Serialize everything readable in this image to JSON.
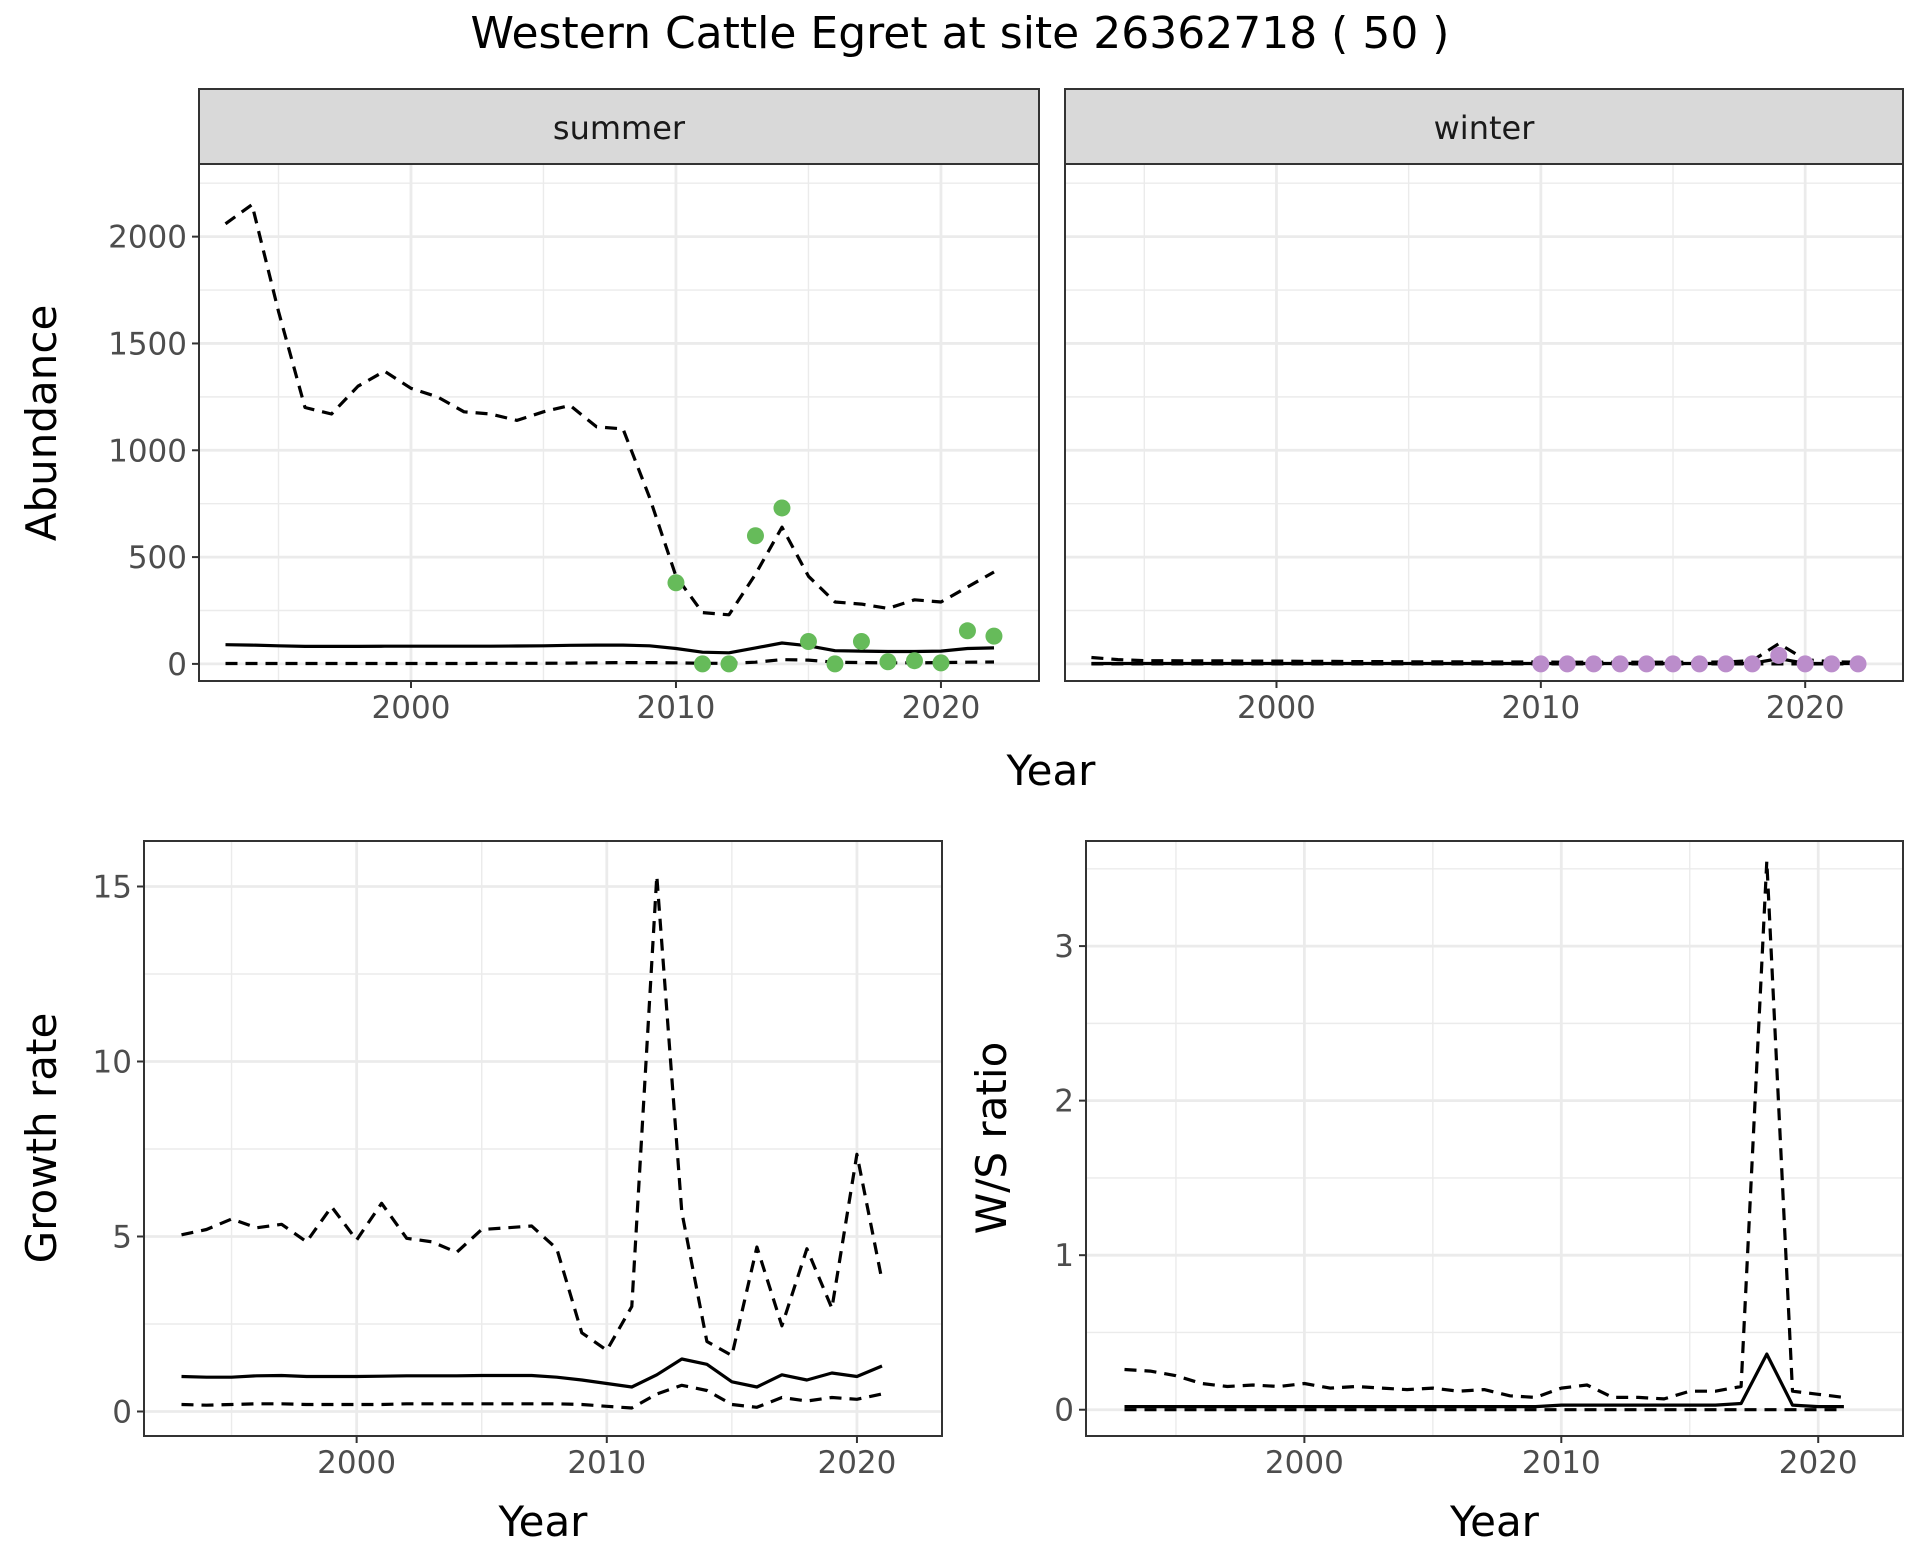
{
  "figure": {
    "title": "Western Cattle Egret at site 26362718 ( 50 )"
  },
  "chart_data": [
    {
      "type": "line",
      "panel": "abundance",
      "facets": [
        "summer",
        "winter"
      ],
      "xlabel": "Year",
      "ylabel": "Abundance",
      "xlim": [
        1992,
        2023.7
      ],
      "ylim": [
        -80,
        2340
      ],
      "xticks": [
        2000,
        2010,
        2020
      ],
      "yticks": [
        0,
        500,
        1000,
        1500,
        2000
      ],
      "grid": true,
      "legend": "none",
      "series": {
        "summer": {
          "x": [
            1993,
            1994,
            1995,
            1996,
            1997,
            1998,
            1999,
            2000,
            2001,
            2002,
            2003,
            2004,
            2005,
            2006,
            2007,
            2008,
            2009,
            2010,
            2011,
            2012,
            2013,
            2014,
            2015,
            2016,
            2017,
            2018,
            2019,
            2020,
            2021,
            2022
          ],
          "estimate": [
            90,
            88,
            85,
            82,
            82,
            82,
            83,
            83,
            83,
            83,
            83,
            84,
            85,
            87,
            88,
            88,
            85,
            72,
            55,
            52,
            75,
            98,
            85,
            62,
            60,
            58,
            58,
            60,
            72,
            75
          ],
          "upper": [
            2060,
            2150,
            1650,
            1200,
            1170,
            1300,
            1370,
            1290,
            1250,
            1180,
            1170,
            1140,
            1180,
            1210,
            1110,
            1100,
            780,
            410,
            240,
            230,
            420,
            640,
            410,
            290,
            280,
            260,
            300,
            290,
            360,
            430
          ],
          "lower": [
            2,
            2,
            2,
            2,
            2,
            2,
            2,
            2,
            2,
            2,
            3,
            3,
            3,
            4,
            5,
            6,
            6,
            5,
            3,
            3,
            8,
            20,
            18,
            8,
            6,
            5,
            5,
            6,
            8,
            9
          ],
          "obs_x": [
            2010,
            2011,
            2012,
            2013,
            2014,
            2015,
            2016,
            2017,
            2018,
            2019,
            2020,
            2021,
            2022
          ],
          "obs_y": [
            380,
            0,
            0,
            600,
            730,
            105,
            0,
            105,
            10,
            15,
            5,
            155,
            130
          ],
          "point_color": "#66BB5A"
        },
        "winter": {
          "x": [
            1993,
            1994,
            1995,
            1996,
            1997,
            1998,
            1999,
            2000,
            2001,
            2002,
            2003,
            2004,
            2005,
            2006,
            2007,
            2008,
            2009,
            2010,
            2011,
            2012,
            2013,
            2014,
            2015,
            2016,
            2017,
            2018,
            2019,
            2020,
            2021,
            2022
          ],
          "estimate": [
            2,
            2,
            2,
            2,
            2,
            2,
            2,
            2,
            2,
            2,
            2,
            2,
            2,
            2,
            2,
            2,
            2,
            2,
            2,
            2,
            2,
            2,
            2,
            2,
            2,
            3,
            25,
            3,
            2,
            2
          ],
          "upper": [
            30,
            20,
            15,
            15,
            14,
            14,
            13,
            13,
            12,
            12,
            11,
            11,
            10,
            10,
            10,
            9,
            9,
            9,
            8,
            8,
            8,
            8,
            8,
            8,
            9,
            15,
            95,
            20,
            10,
            8
          ],
          "lower": [
            0,
            0,
            0,
            0,
            0,
            0,
            0,
            0,
            0,
            0,
            0,
            0,
            0,
            0,
            0,
            0,
            0,
            0,
            0,
            0,
            0,
            0,
            0,
            0,
            0,
            0,
            0,
            0,
            0,
            0
          ],
          "obs_x": [
            2010,
            2011,
            2012,
            2013,
            2014,
            2015,
            2016,
            2017,
            2018,
            2019,
            2020,
            2021,
            2022
          ],
          "obs_y": [
            0,
            0,
            0,
            0,
            0,
            0,
            0,
            0,
            0,
            40,
            0,
            0,
            0
          ],
          "point_color": "#BB8DCB"
        }
      }
    },
    {
      "type": "line",
      "panel": "growth",
      "xlabel": "Year",
      "ylabel": "Growth rate",
      "xlim": [
        1991.5,
        2023.4
      ],
      "ylim": [
        -0.7,
        16.3
      ],
      "xticks": [
        2000,
        2010,
        2020
      ],
      "yticks": [
        0,
        5,
        10,
        15
      ],
      "grid": true,
      "legend": "none",
      "x": [
        1993,
        1994,
        1995,
        1996,
        1997,
        1998,
        1999,
        2000,
        2001,
        2002,
        2003,
        2004,
        2005,
        2006,
        2007,
        2008,
        2009,
        2010,
        2011,
        2012,
        2013,
        2014,
        2015,
        2016,
        2017,
        2018,
        2019,
        2020,
        2021
      ],
      "estimate": [
        1.0,
        0.98,
        0.98,
        1.02,
        1.03,
        1.0,
        1.0,
        1.0,
        1.01,
        1.02,
        1.02,
        1.02,
        1.03,
        1.03,
        1.03,
        0.98,
        0.9,
        0.8,
        0.7,
        1.05,
        1.5,
        1.35,
        0.85,
        0.7,
        1.05,
        0.9,
        1.1,
        1.0,
        1.3
      ],
      "upper": [
        5.05,
        5.2,
        5.5,
        5.25,
        5.35,
        4.85,
        5.85,
        4.9,
        5.95,
        4.95,
        4.85,
        4.55,
        5.2,
        5.25,
        5.3,
        4.65,
        2.25,
        1.75,
        3.0,
        15.3,
        5.7,
        2.0,
        1.6,
        4.7,
        2.45,
        4.65,
        2.95,
        7.35,
        3.75
      ],
      "lower": [
        0.2,
        0.18,
        0.2,
        0.22,
        0.22,
        0.2,
        0.2,
        0.2,
        0.2,
        0.22,
        0.22,
        0.22,
        0.22,
        0.22,
        0.22,
        0.22,
        0.2,
        0.15,
        0.1,
        0.5,
        0.75,
        0.6,
        0.2,
        0.12,
        0.4,
        0.3,
        0.4,
        0.35,
        0.5
      ]
    },
    {
      "type": "line",
      "panel": "ws_ratio",
      "xlabel": "Year",
      "ylabel": "W/S ratio",
      "xlim": [
        1991.5,
        2023.3
      ],
      "ylim": [
        -0.17,
        3.68
      ],
      "xticks": [
        2000,
        2010,
        2020
      ],
      "yticks": [
        0,
        1,
        2,
        3
      ],
      "grid": true,
      "legend": "none",
      "x": [
        1993,
        1994,
        1995,
        1996,
        1997,
        1998,
        1999,
        2000,
        2001,
        2002,
        2003,
        2004,
        2005,
        2006,
        2007,
        2008,
        2009,
        2010,
        2011,
        2012,
        2013,
        2014,
        2015,
        2016,
        2017,
        2018,
        2019,
        2020,
        2021
      ],
      "estimate": [
        0.02,
        0.02,
        0.02,
        0.02,
        0.02,
        0.02,
        0.02,
        0.02,
        0.02,
        0.02,
        0.02,
        0.02,
        0.02,
        0.02,
        0.02,
        0.02,
        0.02,
        0.03,
        0.03,
        0.03,
        0.03,
        0.03,
        0.03,
        0.03,
        0.04,
        0.36,
        0.03,
        0.02,
        0.02
      ],
      "upper": [
        0.26,
        0.25,
        0.22,
        0.17,
        0.15,
        0.16,
        0.15,
        0.17,
        0.14,
        0.15,
        0.14,
        0.13,
        0.14,
        0.12,
        0.13,
        0.09,
        0.08,
        0.14,
        0.16,
        0.08,
        0.08,
        0.07,
        0.12,
        0.12,
        0.15,
        3.55,
        0.12,
        0.1,
        0.08
      ],
      "lower": [
        0,
        0,
        0,
        0,
        0,
        0,
        0,
        0,
        0,
        0,
        0,
        0,
        0,
        0,
        0,
        0,
        0,
        0,
        0,
        0,
        0,
        0,
        0,
        0,
        0,
        0,
        0,
        0,
        0
      ]
    }
  ]
}
